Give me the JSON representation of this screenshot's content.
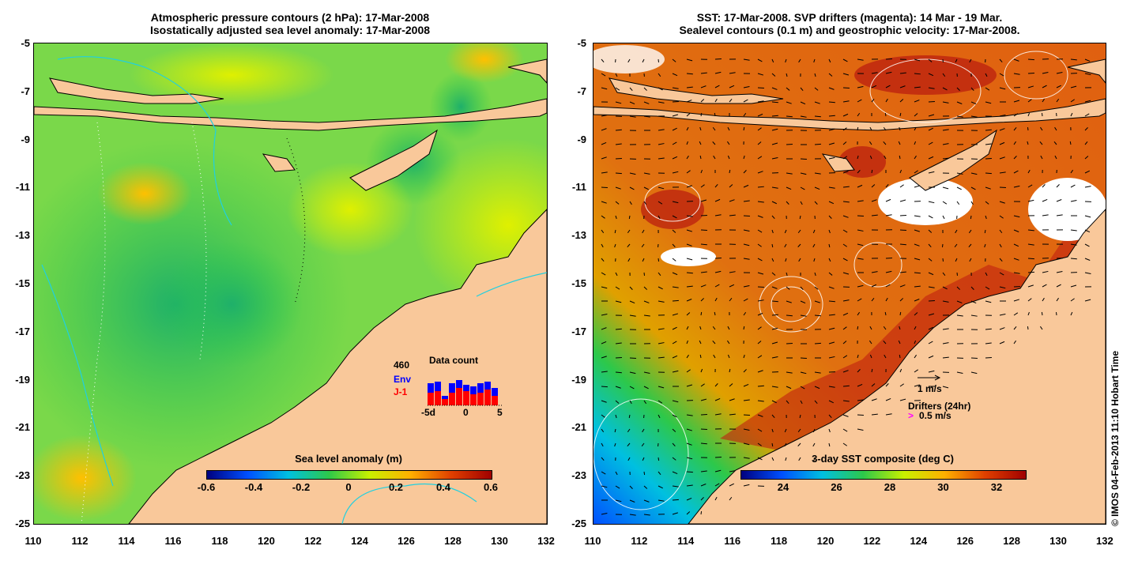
{
  "left_panel": {
    "title_line1": "Atmospheric pressure contours (2 hPa): 17-Mar-2008",
    "title_line2": "Isostatically adjusted sea level anomaly: 17-Mar-2008",
    "colorbar_title": "Sea level anomaly (m)",
    "colorbar_ticks": [
      "-0.6",
      "-0.4",
      "-0.2",
      "0",
      "0.2",
      "0.4",
      "0.6"
    ],
    "inset": {
      "total": "460",
      "env_label": "Env",
      "j1_label": "J-1",
      "title": "Data count",
      "x_ticks": [
        "-5d",
        "0",
        "5"
      ],
      "env_color": "#0000ff",
      "j1_color": "#ff0000"
    }
  },
  "right_panel": {
    "title_line1": "SST: 17-Mar-2008. SVP drifters (magenta): 14 Mar - 19 Mar.",
    "title_line2": "Sealevel contours (0.1 m) and geostrophic velocity: 17-Mar-2008.",
    "colorbar_title": "3-day SST composite (deg C)",
    "colorbar_ticks": [
      "24",
      "26",
      "28",
      "30",
      "32"
    ],
    "velocity_scale_label": "1 m/s",
    "drifters_label": "Drifters (24hr)",
    "drifter_scale_label": "0.5 m/s"
  },
  "axes": {
    "y_ticks": [
      "-5",
      "-7",
      "-9",
      "-11",
      "-13",
      "-15",
      "-17",
      "-19",
      "-21",
      "-23",
      "-25"
    ],
    "x_ticks": [
      "110",
      "112",
      "114",
      "116",
      "118",
      "120",
      "122",
      "124",
      "126",
      "128",
      "130",
      "132"
    ]
  },
  "credit": "© IMOS 04-Feb-2013 11:10 Hobart Time",
  "colors": {
    "land": "#f9c89a",
    "sla_cbar": [
      "#00007f",
      "#0050ff",
      "#00c0e0",
      "#2dc84a",
      "#c8f000",
      "#ffb000",
      "#e04000",
      "#a00000"
    ],
    "sst_cbar": [
      "#00007f",
      "#0050ff",
      "#00c0e0",
      "#2dc84a",
      "#c8f000",
      "#ffb000",
      "#e04000",
      "#a00000"
    ]
  }
}
